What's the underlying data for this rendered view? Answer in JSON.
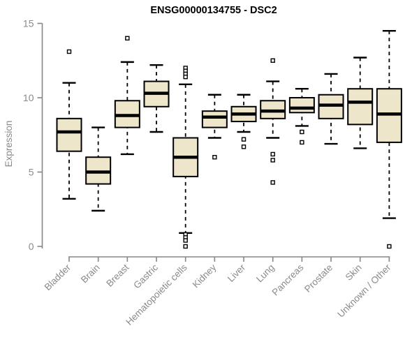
{
  "title": "ENSG00000134755 - DSC2",
  "chart_data": {
    "type": "boxplot",
    "title": "ENSG00000134755 - DSC2",
    "xlabel": "",
    "ylabel": "Expression",
    "ylim": [
      0,
      15
    ],
    "yticks": [
      0,
      5,
      10,
      15
    ],
    "grid": false,
    "legend": "none",
    "categories": [
      "Bladder",
      "Brain",
      "Breast",
      "Gastric",
      "Hematopoietic cells",
      "Kidney",
      "Liver",
      "Lung",
      "Pancreas",
      "Prostate",
      "Skin",
      "Unknown / Other"
    ],
    "boxes": [
      {
        "category": "Bladder",
        "whisker_low": 3.2,
        "q1": 6.4,
        "median": 7.7,
        "q3": 8.6,
        "whisker_high": 11.0,
        "outliers": [
          13.1
        ]
      },
      {
        "category": "Brain",
        "whisker_low": 2.4,
        "q1": 4.2,
        "median": 5.0,
        "q3": 6.0,
        "whisker_high": 8.0,
        "outliers": []
      },
      {
        "category": "Breast",
        "whisker_low": 6.2,
        "q1": 8.0,
        "median": 8.8,
        "q3": 9.8,
        "whisker_high": 12.4,
        "outliers": [
          14.0
        ]
      },
      {
        "category": "Gastric",
        "whisker_low": 7.7,
        "q1": 9.4,
        "median": 10.3,
        "q3": 11.1,
        "whisker_high": 12.2,
        "outliers": []
      },
      {
        "category": "Hematopoietic cells",
        "whisker_low": 0.9,
        "q1": 4.7,
        "median": 6.0,
        "q3": 7.3,
        "whisker_high": 10.9,
        "outliers": [
          12.0,
          11.8,
          11.6,
          11.4,
          0.8,
          0.6,
          0.4,
          0.0
        ]
      },
      {
        "category": "Kidney",
        "whisker_low": 7.3,
        "q1": 8.0,
        "median": 8.7,
        "q3": 9.1,
        "whisker_high": 10.2,
        "outliers": [
          6.0
        ]
      },
      {
        "category": "Liver",
        "whisker_low": 7.7,
        "q1": 8.4,
        "median": 8.9,
        "q3": 9.4,
        "whisker_high": 10.2,
        "outliers": [
          7.2,
          6.7
        ]
      },
      {
        "category": "Lung",
        "whisker_low": 7.3,
        "q1": 8.6,
        "median": 9.1,
        "q3": 9.8,
        "whisker_high": 11.1,
        "outliers": [
          12.5,
          6.2,
          5.8,
          4.3
        ]
      },
      {
        "category": "Pancreas",
        "whisker_low": 8.1,
        "q1": 9.0,
        "median": 9.3,
        "q3": 10.0,
        "whisker_high": 10.6,
        "outliers": [
          7.7,
          7.0
        ]
      },
      {
        "category": "Prostate",
        "whisker_low": 6.9,
        "q1": 8.6,
        "median": 9.5,
        "q3": 10.2,
        "whisker_high": 11.6,
        "outliers": []
      },
      {
        "category": "Skin",
        "whisker_low": 6.6,
        "q1": 8.2,
        "median": 9.7,
        "q3": 10.6,
        "whisker_high": 12.7,
        "outliers": []
      },
      {
        "category": "Unknown / Other",
        "whisker_low": 1.9,
        "q1": 7.0,
        "median": 8.9,
        "q3": 10.6,
        "whisker_high": 14.5,
        "outliers": [
          0.0
        ]
      }
    ],
    "colors": {
      "box_fill": "#ede6cb",
      "box_border": "#000000",
      "median": "#000000",
      "whisker": "#000000",
      "axis": "#868686",
      "tick_label": "#8a8a8a",
      "title": "#000000",
      "background": "#ffffff"
    }
  }
}
